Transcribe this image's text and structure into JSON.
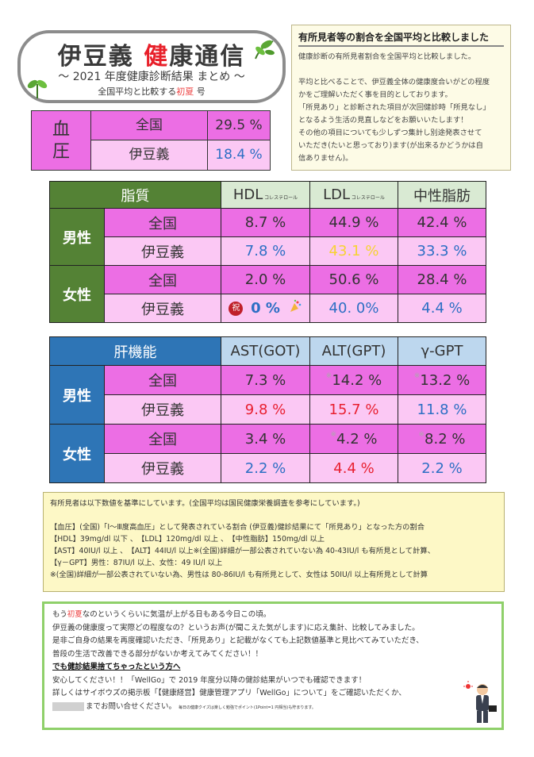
{
  "title": {
    "part1": "伊豆義",
    "part2": "健康通信",
    "subtitle": "～ 2021 年度健康診断結果 まとめ ～",
    "sub2_pre": "全国平均と比較する",
    "sub2_season": "初夏",
    "sub2_post": " 号"
  },
  "note": {
    "title": "有所見者等の割合を全国平均と比較しました",
    "lines": [
      "健康診断の有所見者割合を全国平均と比較しました。",
      "",
      "平均と比べることで、伊豆義全体の健康度合いがどの程度",
      "かをご理解いただく事を目的としております。",
      "「所見あり」と診断された項目が次回健診時「所見なし」",
      "となるよう生活の見直しなどをお願いいたします！",
      "その他の項目についても少しずつ集計し別途発表させて",
      "いただき(たいと思っており)ます(が出来るかどうかは自",
      "信ありません)。"
    ]
  },
  "bp": {
    "label": "血圧",
    "rows": [
      {
        "name": "全国",
        "value": "29.5 %"
      },
      {
        "name": "伊豆義",
        "value": "18.4 %"
      }
    ]
  },
  "lipid": {
    "header": "脂質",
    "cols": [
      {
        "main": "HDL",
        "small": " コレステロール"
      },
      {
        "main": "LDL",
        "small": " コレステロール"
      },
      {
        "main": "中性脂肪",
        "small": ""
      }
    ],
    "male_label": "男性",
    "female_label": "女性",
    "row_national": "全国",
    "row_company": "伊豆義",
    "male_national": [
      "8.7 %",
      "44.9 %",
      "42.4 %"
    ],
    "male_company": [
      "7.8 %",
      "43.1 %",
      "33.3 %"
    ],
    "female_national": [
      "2.0 %",
      "50.6 %",
      "28.4 %"
    ],
    "female_company": [
      "0 %",
      "40. 0%",
      "4.4 %"
    ],
    "celebrate_badge": "祝"
  },
  "liver": {
    "header": "肝機能",
    "cols": [
      "AST(GOT)",
      "ALT(GPT)",
      "γ-GPT"
    ],
    "male_label": "男性",
    "female_label": "女性",
    "row_national": "全国",
    "row_company": "伊豆義",
    "asterisk": "※",
    "male_national": [
      "7.3 %",
      "14.2 %",
      "13.2 %"
    ],
    "male_company": [
      "9.8 %",
      "15.7 %",
      "11.8 %"
    ],
    "female_national": [
      "3.4 %",
      "4.2 %",
      "8.2 %"
    ],
    "female_company": [
      "2.2 %",
      "4.4 %",
      "2.2 %"
    ]
  },
  "criteria": {
    "lines": [
      "有所見者は以下数値を基準にしています。(全国平均は国民健康栄養調査を参考にしています。)",
      "",
      "【血圧】(全国)「Ⅰ～Ⅲ度高血圧」として発表されている割合 (伊豆義)健診結果にて「所見あり」となった方の割合",
      "【HDL】39mg/dl 以下 、　【LDL】120mg/dl 以上 、　【中性脂肪】150mg/dl 以上",
      "【AST】40IU/l 以上 、　【ALT】44IU/l 以上※(全国)詳細が一部公表されていない為 40-43IU/l も有所見として計算、",
      "【γ－GPT】男性：87IU/l 以上、女性：49 IU/l 以上",
      "※(全国)詳細が一部公表されていない為、男性は 80-86IU/l も有所見として、女性は 50IU/l 以上有所見として計算"
    ]
  },
  "bottom": {
    "line1_pre": "もう",
    "line1_season": "初夏",
    "line1_post": "なのというくらいに気温が上がる日もある今日この頃。",
    "line2": "伊豆義の健康度って実際どの程度なの？というお声(が聞こえた気がします)に応え集計、比較してみました。",
    "line3": "是非ご自身の結果を再度確認いただき、「所見あり」と記載がなくても上記数値基準と見比べてみていただき、",
    "line4": "普段の生活で改善できる部分がないか考えてみてください！！",
    "heading": "でも健診結果捨てちゃったという方へ",
    "line5": "安心してください！！「WellGo」で 2019 年度分以降の健診結果がいつでも確認できます！",
    "line6": "詳しくはサイボウズの掲示板「【健康経営】健康管理アプリ「WellGo」について」をご確認いただくか、",
    "line7": "までお問い合せください。",
    "fine": "毎日の健康クイズは楽しく勉強でポイント(1Point=1 円相当)も貯まります。"
  },
  "colors": {
    "pink_strong": "#ec6ee4",
    "pink_light": "#fbc8f4",
    "green_dark": "#548235",
    "green_light": "#d9ead3",
    "blue_dark": "#2e75b6",
    "blue_light": "#bdd7ee",
    "accent_blue": "#2d6fc4",
    "accent_red": "#e82030"
  }
}
